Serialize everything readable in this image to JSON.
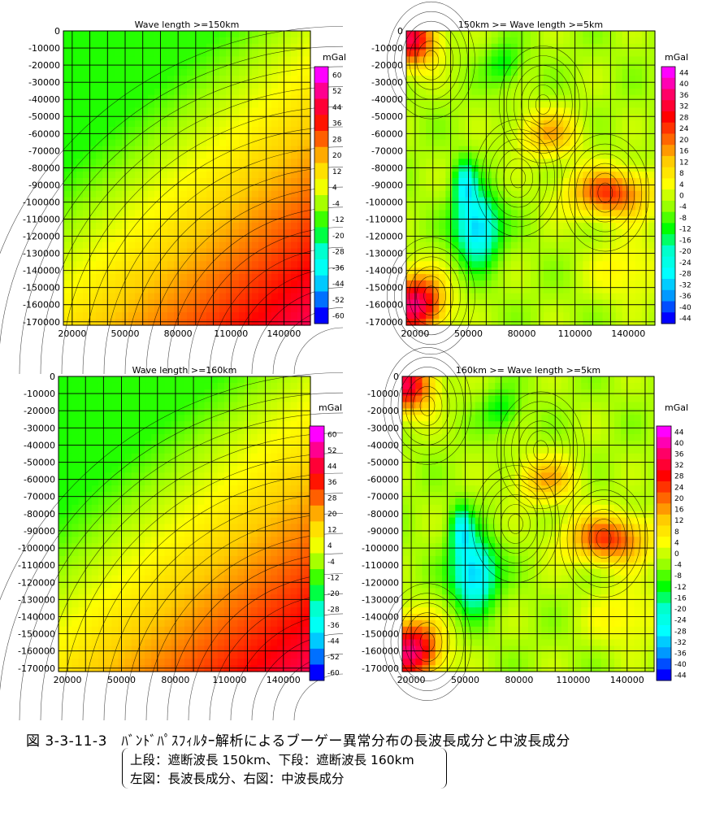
{
  "chart_data": [
    {
      "type": "heatmap",
      "panel": "upper-left",
      "title": "Wave length >=150km",
      "unit": "mGal",
      "colorbar_ticks": [
        60,
        52,
        44,
        36,
        28,
        20,
        12,
        4,
        -4,
        -12,
        -20,
        -28,
        -36,
        -44,
        -52,
        -60
      ],
      "xticks": [
        20000,
        50000,
        80000,
        110000,
        140000
      ],
      "yticks": [
        0,
        -10000,
        -20000,
        -30000,
        -40000,
        -50000,
        -60000,
        -70000,
        -80000,
        -90000,
        -100000,
        -110000,
        -120000,
        -130000,
        -140000,
        -150000,
        -160000,
        -170000
      ],
      "xlim": [
        15000,
        155000
      ],
      "ylim": [
        -172000,
        0
      ],
      "field": "linear",
      "grid": true
    },
    {
      "type": "heatmap",
      "panel": "upper-right",
      "title": "150km >= Wave length >=5km",
      "unit": "mGal",
      "colorbar_ticks": [
        44,
        40,
        36,
        32,
        28,
        24,
        20,
        16,
        12,
        8,
        4,
        0,
        -4,
        -8,
        -12,
        -16,
        -20,
        -24,
        -28,
        -32,
        -36,
        -40,
        -44
      ],
      "xticks": [
        20000,
        50000,
        80000,
        110000,
        140000
      ],
      "yticks": [
        0,
        -10000,
        -20000,
        -30000,
        -40000,
        -50000,
        -60000,
        -70000,
        -80000,
        -90000,
        -100000,
        -110000,
        -120000,
        -130000,
        -140000,
        -150000,
        -160000,
        -170000
      ],
      "xlim": [
        15000,
        155000
      ],
      "ylim": [
        -172000,
        0
      ],
      "field": "local",
      "grid": true
    },
    {
      "type": "heatmap",
      "panel": "lower-left",
      "title": "Wave length >=160km",
      "unit": "mGal",
      "colorbar_ticks": [
        60,
        52,
        44,
        36,
        28,
        20,
        12,
        4,
        -4,
        -12,
        -20,
        -28,
        -36,
        -44,
        -52,
        -60
      ],
      "xticks": [
        20000,
        50000,
        80000,
        110000,
        140000
      ],
      "yticks": [
        0,
        -10000,
        -20000,
        -30000,
        -40000,
        -50000,
        -60000,
        -70000,
        -80000,
        -90000,
        -100000,
        -110000,
        -120000,
        -130000,
        -140000,
        -150000,
        -160000,
        -170000
      ],
      "xlim": [
        15000,
        155000
      ],
      "ylim": [
        -172000,
        0
      ],
      "field": "linear",
      "grid": true
    },
    {
      "type": "heatmap",
      "panel": "lower-right",
      "title": "160km >= Wave length >=5km",
      "unit": "mGal",
      "colorbar_ticks": [
        44,
        40,
        36,
        32,
        28,
        24,
        20,
        16,
        12,
        8,
        4,
        0,
        -4,
        -8,
        -12,
        -16,
        -20,
        -24,
        -28,
        -32,
        -36,
        -40,
        -44
      ],
      "xticks": [
        20000,
        50000,
        80000,
        110000,
        140000
      ],
      "yticks": [
        0,
        -10000,
        -20000,
        -30000,
        -40000,
        -50000,
        -60000,
        -70000,
        -80000,
        -90000,
        -100000,
        -110000,
        -120000,
        -130000,
        -140000,
        -150000,
        -160000,
        -170000
      ],
      "xlim": [
        15000,
        155000
      ],
      "ylim": [
        -172000,
        0
      ],
      "field": "local",
      "grid": true
    }
  ],
  "caption": {
    "title": "図 3-3-11-3　ﾊﾞﾝﾄﾞﾊﾟｽﾌｨﾙﾀｰ解析によるブーゲー異常分布の長波長成分と中波長成分",
    "line1": "上段：遮断波長 150km、下段：遮断波長 160km",
    "line2": "左図：長波長成分、右図：中波長成分"
  },
  "colors": {
    "scale": [
      "#ff00ff",
      "#ff0066",
      "#ff0000",
      "#ff6600",
      "#ffcc00",
      "#ffff00",
      "#99ff00",
      "#00ff00",
      "#00ffcc",
      "#00ffff",
      "#0099ff",
      "#0000ff"
    ],
    "grid": "#000000",
    "contour": "#000000"
  }
}
